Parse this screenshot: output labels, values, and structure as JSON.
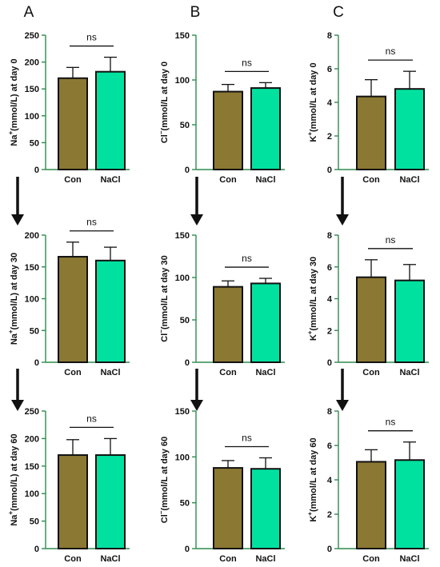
{
  "colors": {
    "con": "#8b7832",
    "nacl": "#00e1a0",
    "axis": "#2e8b4e",
    "ink": "#111111"
  },
  "panel_letters": [
    "A",
    "B",
    "C"
  ],
  "chart_data": [
    {
      "type": "bar",
      "panel": "A",
      "categories": [
        "Con",
        "NaCl"
      ],
      "values": [
        170,
        182
      ],
      "errors": [
        20,
        27
      ],
      "ylim": [
        0,
        250
      ],
      "yticks": [
        0,
        50,
        100,
        150,
        200,
        250
      ],
      "ylabel_pre": "Na",
      "ylabel_sup": "+",
      "ylabel_post": "(mmol/L) at day 0",
      "significance": "ns"
    },
    {
      "type": "bar",
      "panel": "B",
      "categories": [
        "Con",
        "NaCl"
      ],
      "values": [
        87,
        91
      ],
      "errors": [
        8,
        6
      ],
      "ylim": [
        0,
        150
      ],
      "yticks": [
        0,
        50,
        100,
        150
      ],
      "ylabel_pre": "Cl",
      "ylabel_sup": "−",
      "ylabel_post": "(mmol/L at day 0",
      "significance": "ns"
    },
    {
      "type": "bar",
      "panel": "C",
      "categories": [
        "Con",
        "NaCl"
      ],
      "values": [
        4.35,
        4.8
      ],
      "errors": [
        1.0,
        1.05
      ],
      "ylim": [
        0,
        8
      ],
      "yticks": [
        0,
        2,
        4,
        6,
        8
      ],
      "ylabel_pre": "K",
      "ylabel_sup": "+",
      "ylabel_post": "(mmol/L at day 0",
      "significance": "ns"
    },
    {
      "type": "bar",
      "panel": "A",
      "categories": [
        "Con",
        "NaCl"
      ],
      "values": [
        166,
        160
      ],
      "errors": [
        23,
        21
      ],
      "ylim": [
        0,
        200
      ],
      "yticks": [
        0,
        50,
        100,
        150,
        200
      ],
      "ylabel_pre": "Na",
      "ylabel_sup": "+",
      "ylabel_post": "(mmol/L) at day 30",
      "significance": "ns"
    },
    {
      "type": "bar",
      "panel": "B",
      "categories": [
        "Con",
        "NaCl"
      ],
      "values": [
        89,
        93
      ],
      "errors": [
        7,
        6
      ],
      "ylim": [
        0,
        150
      ],
      "yticks": [
        0,
        50,
        100,
        150
      ],
      "ylabel_pre": "Cl",
      "ylabel_sup": "−",
      "ylabel_post": "(mmol/L at day 30",
      "significance": "ns"
    },
    {
      "type": "bar",
      "panel": "C",
      "categories": [
        "Con",
        "NaCl"
      ],
      "values": [
        5.35,
        5.15
      ],
      "errors": [
        1.1,
        1.0
      ],
      "ylim": [
        0,
        8
      ],
      "yticks": [
        0,
        2,
        4,
        6,
        8
      ],
      "ylabel_pre": "K",
      "ylabel_sup": "+",
      "ylabel_post": "(mmol/L at day 30",
      "significance": "ns"
    },
    {
      "type": "bar",
      "panel": "A",
      "categories": [
        "Con",
        "NaCl"
      ],
      "values": [
        170,
        170
      ],
      "errors": [
        28,
        30
      ],
      "ylim": [
        0,
        250
      ],
      "yticks": [
        0,
        50,
        100,
        150,
        200,
        250
      ],
      "ylabel_pre": "Na",
      "ylabel_sup": "+",
      "ylabel_post": "(mmol/L) at day 60",
      "significance": "ns"
    },
    {
      "type": "bar",
      "panel": "B",
      "categories": [
        "Con",
        "NaCl"
      ],
      "values": [
        88,
        87
      ],
      "errors": [
        8,
        12
      ],
      "ylim": [
        0,
        150
      ],
      "yticks": [
        0,
        50,
        100,
        150
      ],
      "ylabel_pre": "Cl",
      "ylabel_sup": "−",
      "ylabel_post": "(mmol/L at day 60",
      "significance": "ns"
    },
    {
      "type": "bar",
      "panel": "C",
      "categories": [
        "Con",
        "NaCl"
      ],
      "values": [
        5.05,
        5.15
      ],
      "errors": [
        0.7,
        1.05
      ],
      "ylim": [
        0,
        8
      ],
      "yticks": [
        0,
        2,
        4,
        6,
        8
      ],
      "ylabel_pre": "K",
      "ylabel_sup": "+",
      "ylabel_post": "(mmol/L at day 60",
      "significance": "ns"
    }
  ]
}
